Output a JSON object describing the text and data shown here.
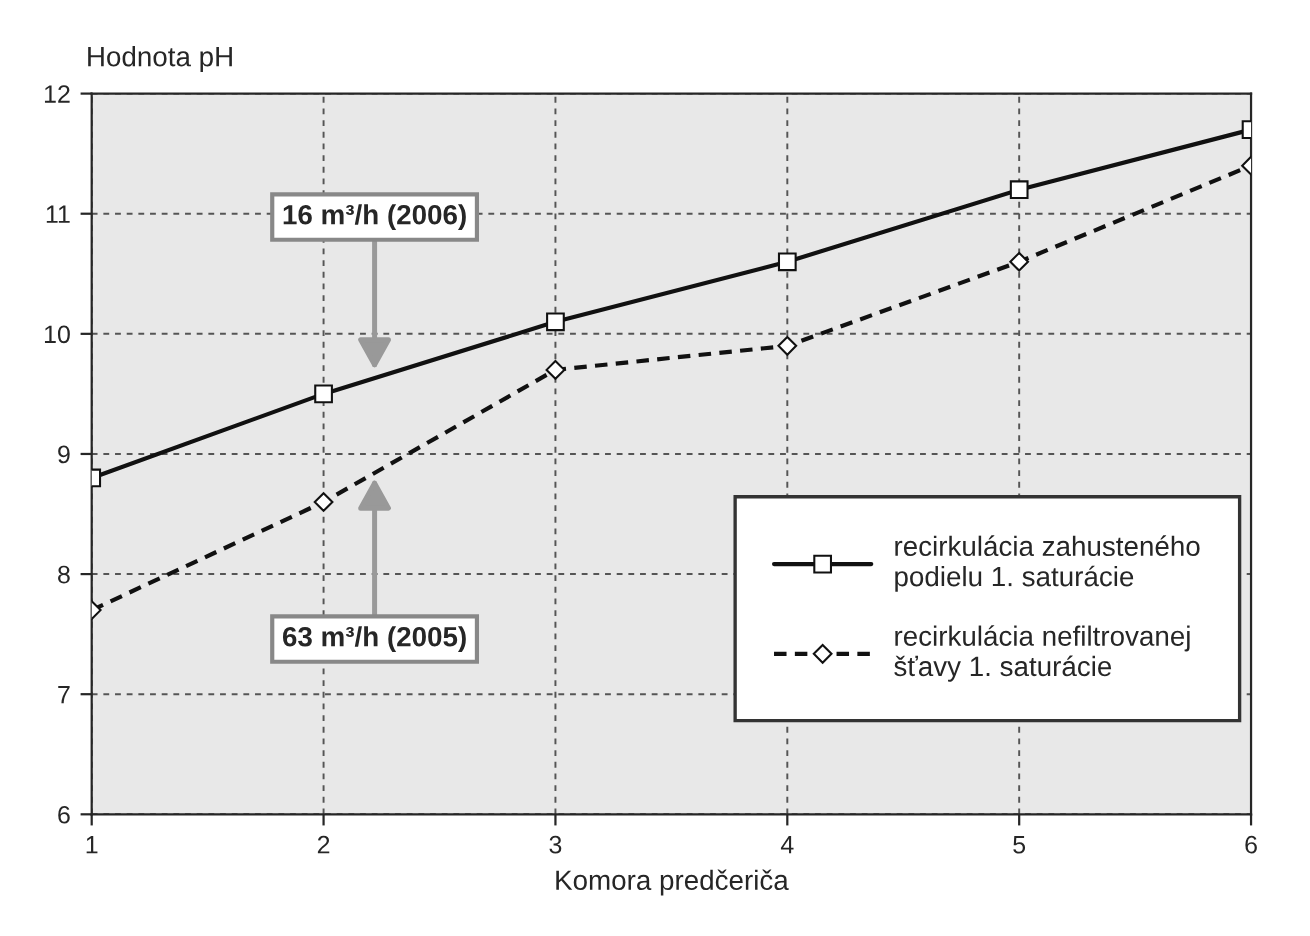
{
  "chart_data": {
    "type": "line",
    "ylabel": "Hodnota pH",
    "xlabel": "Komora predčeriča",
    "x": [
      1,
      2,
      3,
      4,
      5,
      6
    ],
    "series": [
      {
        "name": "recirkulácia zahusteného\npodielu 1. saturácie",
        "color": "#111111",
        "values": [
          8.8,
          9.5,
          10.1,
          10.6,
          11.2,
          11.7
        ],
        "marker": "square",
        "line_style": "solid"
      },
      {
        "name": "recirkulácia nefiltrovanej\nšťavy 1. saturácie",
        "color": "#111111",
        "values": [
          7.7,
          8.6,
          9.7,
          9.9,
          10.6,
          11.4
        ],
        "marker": "diamond",
        "line_style": "dashed"
      }
    ],
    "xlim": [
      1,
      6
    ],
    "xticks": [
      1,
      2,
      3,
      4,
      5,
      6
    ],
    "ylim": [
      6,
      12
    ],
    "yticks": [
      6,
      7,
      8,
      9,
      10,
      11,
      12
    ],
    "grid": true,
    "legend": "bottom right",
    "annotations": [
      {
        "text": "16 m³/h (2006)",
        "x": 2.22,
        "y": 9.7
      },
      {
        "text": "63 m³/h (2005)",
        "x": 2.22,
        "y": 8.8
      }
    ]
  }
}
